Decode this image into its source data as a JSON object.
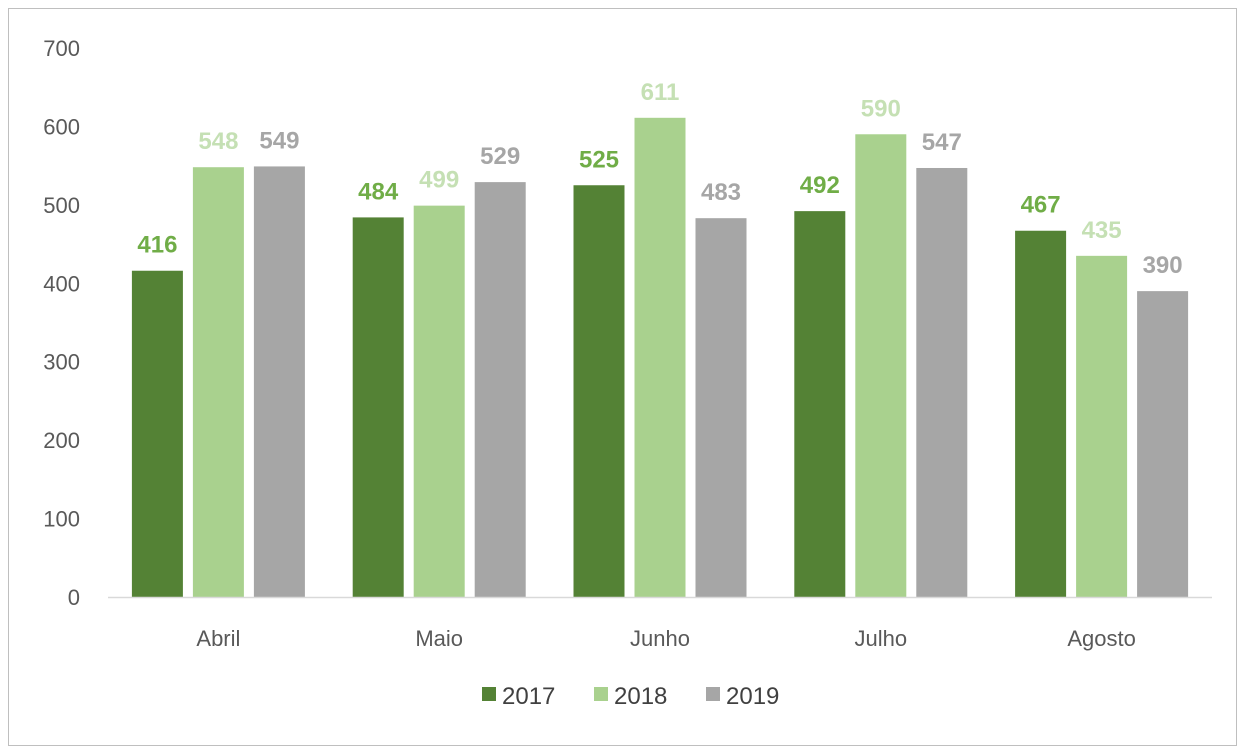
{
  "chart_data": {
    "type": "bar",
    "categories": [
      "Abril",
      "Maio",
      "Junho",
      "Julho",
      "Agosto"
    ],
    "series": [
      {
        "name": "2017",
        "color": "#548235",
        "label_color": "#70ad47",
        "values": [
          416,
          484,
          525,
          492,
          467
        ]
      },
      {
        "name": "2018",
        "color": "#a9d18e",
        "label_color": "#c5e0b4",
        "values": [
          548,
          499,
          611,
          590,
          435
        ]
      },
      {
        "name": "2019",
        "color": "#a6a6a6",
        "label_color": "#a6a6a6",
        "values": [
          549,
          529,
          483,
          547,
          390
        ]
      }
    ],
    "y_ticks": [
      "0",
      "100",
      "200",
      "300",
      "400",
      "500",
      "600",
      "700"
    ],
    "ylim": [
      0,
      700
    ],
    "grid": false,
    "legend_position": "bottom",
    "title": "",
    "xlabel": "",
    "ylabel": ""
  }
}
